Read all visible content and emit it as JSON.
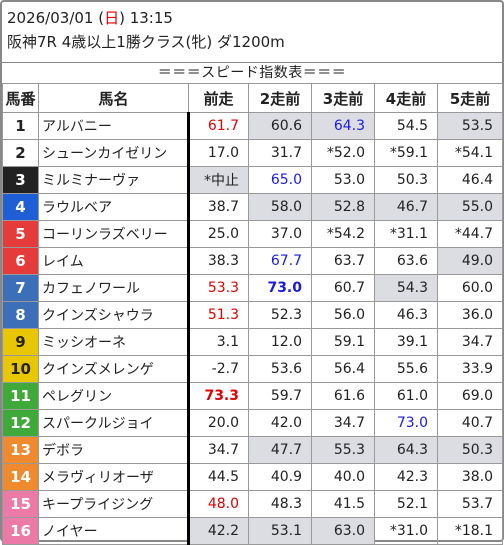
{
  "header": {
    "date_prefix": "2026/03/01 (",
    "weekday": "日",
    "date_suffix": ") 13:15",
    "race": "阪神7R 4歳以上1勝クラス(牝) ダ1200m"
  },
  "banner": "＝＝＝スピード指数表＝＝＝",
  "columns": [
    "馬番",
    "馬名",
    "前走",
    "2走前",
    "3走前",
    "4走前",
    "5走前"
  ],
  "gate_colors": [
    "#ffffff",
    "#ffffff",
    "#222222",
    "#1f5fd6",
    "#e53b3b",
    "#e53b3b",
    "#3d6fb8",
    "#3d6fb8",
    "#e8c700",
    "#e8c700",
    "#3faa3a",
    "#3faa3a",
    "#ef8b2e",
    "#ef8b2e",
    "#ec7aa6",
    "#ec7aa6"
  ],
  "rows": [
    {
      "num": "1",
      "name": "アルバニー",
      "cells": [
        {
          "v": "61.7",
          "c": "red"
        },
        {
          "v": "60.6",
          "g": 1
        },
        {
          "v": "64.3",
          "c": "blue",
          "g": 1
        },
        {
          "v": "54.5"
        },
        {
          "v": "53.5",
          "g": 1
        }
      ]
    },
    {
      "num": "2",
      "name": "シューンカイゼリン",
      "cells": [
        {
          "v": "17.0"
        },
        {
          "v": "31.7"
        },
        {
          "v": "*52.0"
        },
        {
          "v": "*59.1"
        },
        {
          "v": "*54.1"
        }
      ]
    },
    {
      "num": "3",
      "name": "ミルミナーヴァ",
      "cells": [
        {
          "v": "*中止",
          "g": 1
        },
        {
          "v": "65.0",
          "c": "blue"
        },
        {
          "v": "53.0"
        },
        {
          "v": "50.3"
        },
        {
          "v": "46.4"
        }
      ]
    },
    {
      "num": "4",
      "name": "ラウルベア",
      "cells": [
        {
          "v": "38.7"
        },
        {
          "v": "58.0",
          "g": 1
        },
        {
          "v": "52.8",
          "g": 1
        },
        {
          "v": "46.7",
          "g": 1
        },
        {
          "v": "55.0",
          "g": 1
        }
      ]
    },
    {
      "num": "5",
      "name": "コーリンラズベリー",
      "cells": [
        {
          "v": "25.0"
        },
        {
          "v": "37.0"
        },
        {
          "v": "*54.2"
        },
        {
          "v": "*31.1"
        },
        {
          "v": "*44.7"
        }
      ]
    },
    {
      "num": "6",
      "name": "レイム",
      "cells": [
        {
          "v": "38.3"
        },
        {
          "v": "67.7",
          "c": "blue"
        },
        {
          "v": "63.7"
        },
        {
          "v": "63.6"
        },
        {
          "v": "49.0",
          "g": 1
        }
      ]
    },
    {
      "num": "7",
      "name": "カフェノワール",
      "cells": [
        {
          "v": "53.3",
          "c": "red"
        },
        {
          "v": "73.0",
          "c": "blue",
          "b": 1
        },
        {
          "v": "60.7"
        },
        {
          "v": "54.3",
          "g": 1
        },
        {
          "v": "60.0"
        }
      ]
    },
    {
      "num": "8",
      "name": "クインズシャウラ",
      "cells": [
        {
          "v": "51.3",
          "c": "red"
        },
        {
          "v": "52.3"
        },
        {
          "v": "56.0"
        },
        {
          "v": "46.3"
        },
        {
          "v": "36.0"
        }
      ]
    },
    {
      "num": "9",
      "name": "ミッシオーネ",
      "cells": [
        {
          "v": "3.1"
        },
        {
          "v": "12.0"
        },
        {
          "v": "59.1"
        },
        {
          "v": "39.1"
        },
        {
          "v": "34.7"
        }
      ]
    },
    {
      "num": "10",
      "name": "クインズメレンゲ",
      "cells": [
        {
          "v": "-2.7"
        },
        {
          "v": "53.6"
        },
        {
          "v": "56.4"
        },
        {
          "v": "55.6"
        },
        {
          "v": "33.9"
        }
      ]
    },
    {
      "num": "11",
      "name": "ペレグリン",
      "cells": [
        {
          "v": "73.3",
          "c": "red",
          "b": 1
        },
        {
          "v": "59.7"
        },
        {
          "v": "61.6"
        },
        {
          "v": "61.0"
        },
        {
          "v": "69.0"
        }
      ]
    },
    {
      "num": "12",
      "name": "スパークルジョイ",
      "cells": [
        {
          "v": "20.0"
        },
        {
          "v": "42.0"
        },
        {
          "v": "34.7"
        },
        {
          "v": "73.0",
          "c": "blue"
        },
        {
          "v": "40.7"
        }
      ]
    },
    {
      "num": "13",
      "name": "デボラ",
      "cells": [
        {
          "v": "34.7"
        },
        {
          "v": "47.7",
          "g": 1
        },
        {
          "v": "55.3",
          "g": 1
        },
        {
          "v": "64.3",
          "g": 1
        },
        {
          "v": "50.3",
          "g": 1
        }
      ]
    },
    {
      "num": "14",
      "name": "メラヴィリオーザ",
      "cells": [
        {
          "v": "44.5"
        },
        {
          "v": "40.9"
        },
        {
          "v": "40.0"
        },
        {
          "v": "42.3"
        },
        {
          "v": "38.0"
        }
      ]
    },
    {
      "num": "15",
      "name": "キープライジング",
      "cells": [
        {
          "v": "48.0",
          "c": "red"
        },
        {
          "v": "48.3"
        },
        {
          "v": "41.5"
        },
        {
          "v": "52.1"
        },
        {
          "v": "53.7"
        }
      ]
    },
    {
      "num": "16",
      "name": "ノイヤー",
      "cells": [
        {
          "v": "42.2",
          "g": 1
        },
        {
          "v": "53.1",
          "g": 1
        },
        {
          "v": "63.0",
          "g": 1
        },
        {
          "v": "*31.0"
        },
        {
          "v": "*18.1"
        }
      ]
    }
  ]
}
